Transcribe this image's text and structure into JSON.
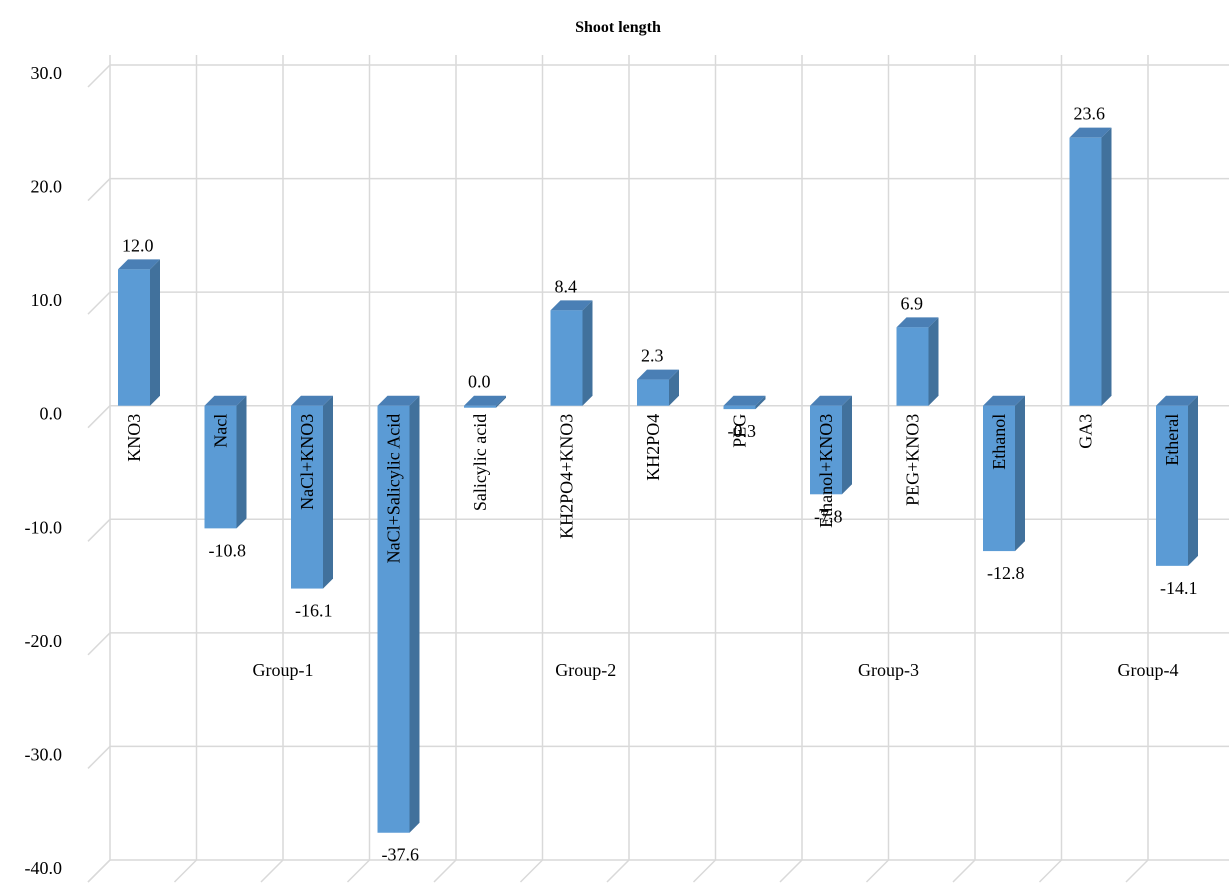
{
  "chart_data": {
    "type": "bar",
    "title": "Shoot length",
    "xlabel": "",
    "ylabel": "",
    "ylim": [
      -40,
      30
    ],
    "y_ticks": [
      "30.0",
      "20.0",
      "10.0",
      "0.0",
      "-10.0",
      "-20.0",
      "-30.0",
      "-40.0"
    ],
    "grid": true,
    "legend": "none",
    "style": "3d-clustered-column",
    "colors": {
      "bar_front": "#5b9bd5",
      "bar_side": "#41719c",
      "bar_top": "#4a7fb5",
      "grid": "#d9d9d9"
    },
    "categories": [
      "KNO3",
      "Nacl",
      "NaCl+KNO3",
      "NaCl+Salicylic Acid",
      "Salicylic acid",
      "KH2PO4+KNO3",
      "KH2PO4",
      "PEG",
      "Ethanol+KNO3",
      "PEG+KNO3",
      "Ethanol",
      "GA3",
      "Etheral"
    ],
    "values": [
      12.0,
      -10.8,
      -16.1,
      -37.6,
      0.0,
      8.4,
      2.3,
      -0.3,
      -7.8,
      6.9,
      -12.8,
      23.6,
      -14.1
    ],
    "value_labels": [
      "12.0",
      "-10.8",
      "-16.1",
      "-37.6",
      "0.0",
      "8.4",
      "2.3",
      "-0.3",
      "-7.8",
      "6.9",
      "-12.8",
      "23.6",
      "-14.1"
    ],
    "groups": [
      {
        "label": "Group-1",
        "from": 0,
        "to": 3
      },
      {
        "label": "Group-2",
        "from": 4,
        "to": 6
      },
      {
        "label": "Group-3",
        "from": 7,
        "to": 10
      },
      {
        "label": "Group-4",
        "from": 11,
        "to": 12
      }
    ]
  }
}
